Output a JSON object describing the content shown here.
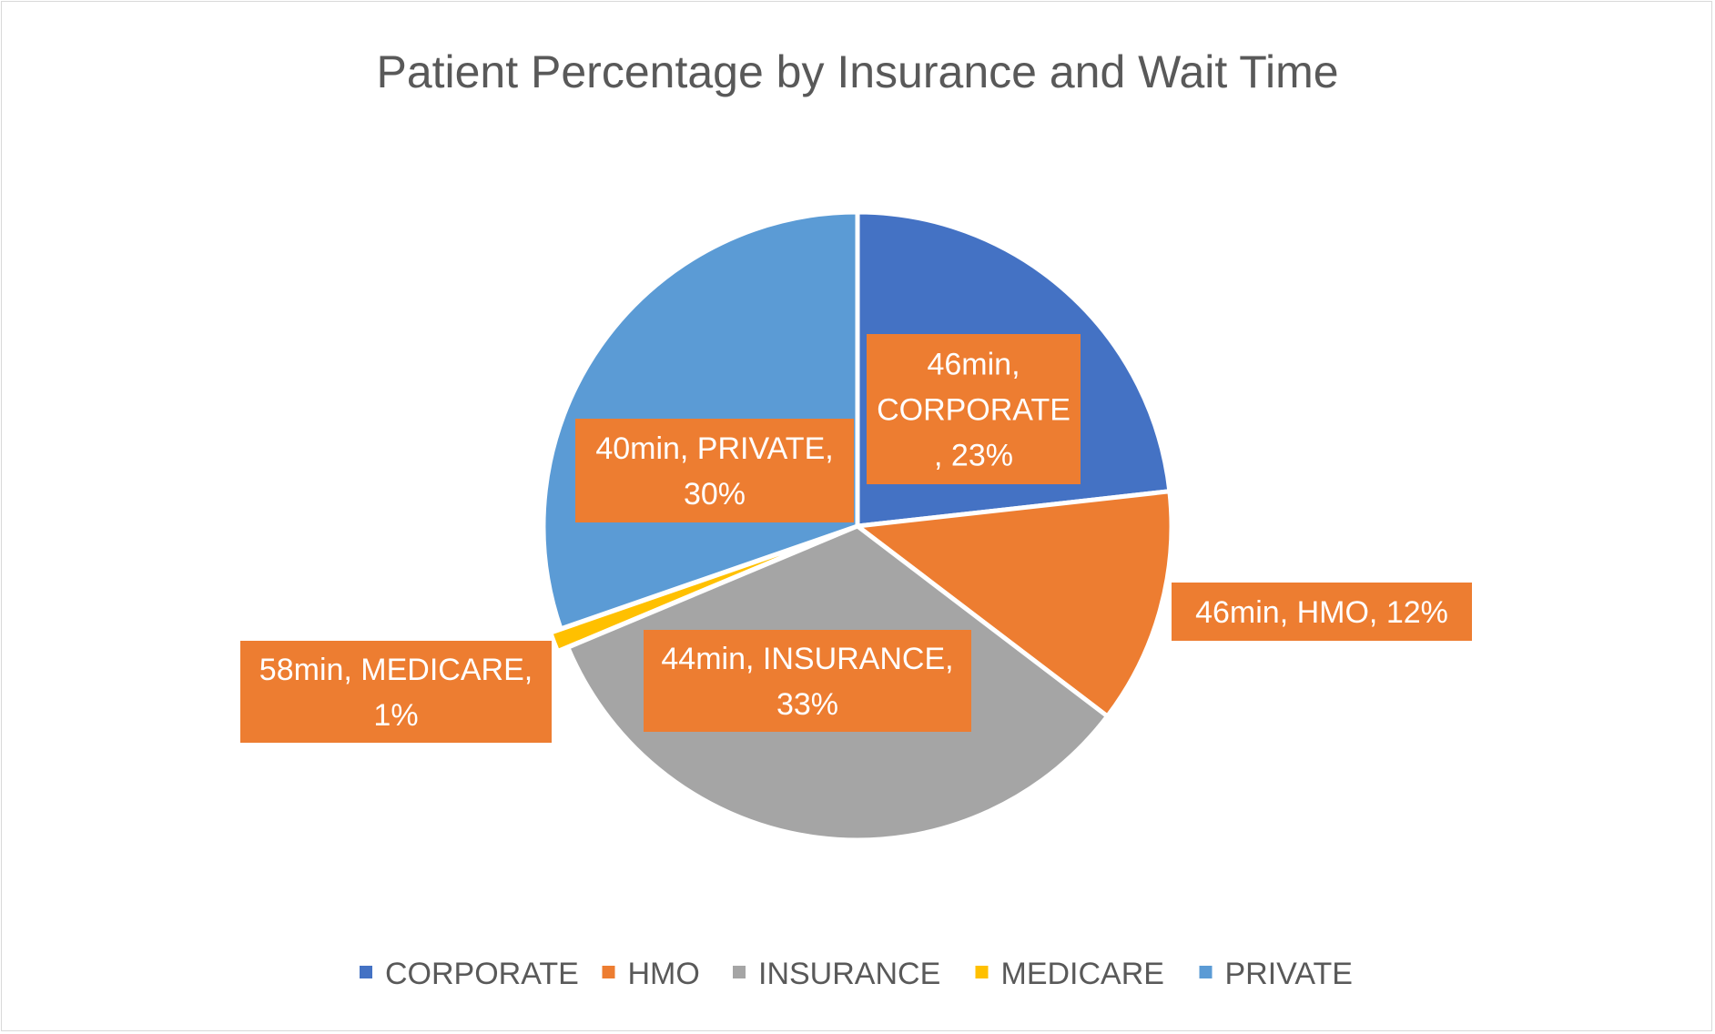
{
  "chart_data": {
    "type": "pie",
    "title": "Patient Percentage by Insurance and Wait Time",
    "categories": [
      "CORPORATE",
      "HMO",
      "INSURANCE",
      "MEDICARE",
      "PRIVATE"
    ],
    "values": [
      23,
      12,
      33,
      1,
      30
    ],
    "unit": "%",
    "wait_times": [
      "46min",
      "46min",
      "44min",
      "58min",
      "40min"
    ],
    "data_labels": [
      [
        "46min,",
        "CORPORATE",
        ", 23%"
      ],
      [
        "46min, HMO, 12%"
      ],
      [
        "44min, INSURANCE,",
        "33%"
      ],
      [
        "58min, MEDICARE,",
        "1%"
      ],
      [
        "40min, PRIVATE,",
        "30%"
      ]
    ],
    "colors": [
      "#4472c4",
      "#ed7d31",
      "#a5a5a5",
      "#ffc000",
      "#5b9bd5"
    ],
    "label_box_color": "#ed7d31",
    "legend": {
      "position": "bottom",
      "entries": [
        "CORPORATE",
        "HMO",
        "INSURANCE",
        "MEDICARE",
        "PRIVATE"
      ]
    }
  }
}
